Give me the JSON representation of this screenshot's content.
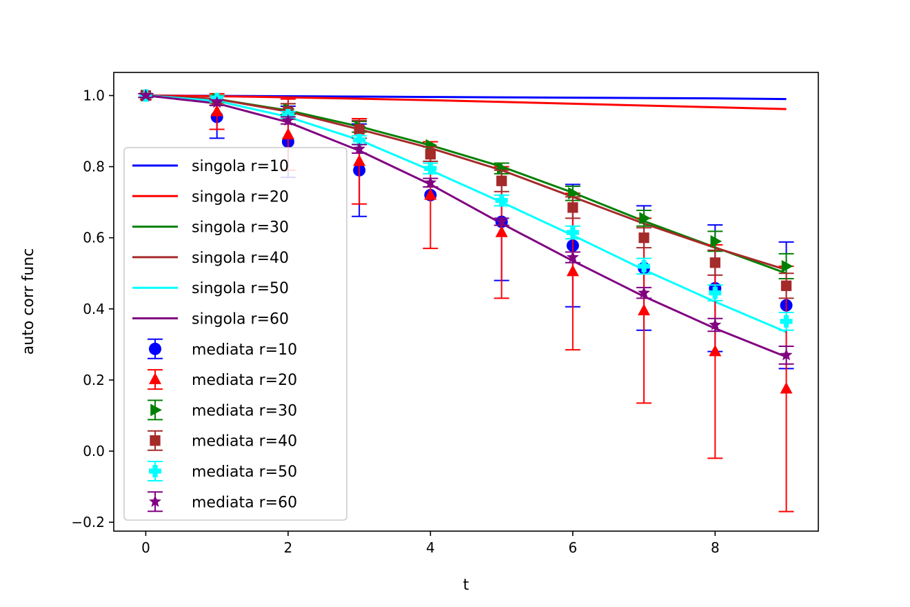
{
  "chart_data": {
    "type": "line",
    "title": "",
    "xlabel": "t",
    "ylabel": "auto corr func",
    "xlim": [
      -0.45,
      9.45
    ],
    "ylim": [
      -0.225,
      1.065
    ],
    "xticks": [
      0,
      2,
      4,
      6,
      8
    ],
    "xtick_labels": [
      "0",
      "2",
      "4",
      "6",
      "8"
    ],
    "yticks": [
      -0.2,
      0.0,
      0.2,
      0.4,
      0.6,
      0.8,
      1.0
    ],
    "ytick_labels": [
      "−0.2",
      "0.0",
      "0.2",
      "0.4",
      "0.6",
      "0.8",
      "1.0"
    ],
    "grid": false,
    "legend_position": "center-left",
    "x": [
      0,
      1,
      2,
      3,
      4,
      5,
      6,
      7,
      8,
      9
    ],
    "line_series": [
      {
        "name": "singola r=10",
        "color": "#0000ff",
        "values": [
          1.0,
          0.999,
          0.998,
          0.997,
          0.996,
          0.995,
          0.994,
          0.993,
          0.992,
          0.99
        ]
      },
      {
        "name": "singola r=20",
        "color": "#ff0000",
        "values": [
          1.0,
          0.998,
          0.995,
          0.991,
          0.987,
          0.982,
          0.977,
          0.972,
          0.967,
          0.962
        ]
      },
      {
        "name": "singola r=30",
        "color": "#008000",
        "values": [
          1.0,
          0.99,
          0.958,
          0.913,
          0.86,
          0.8,
          0.727,
          0.647,
          0.573,
          0.5
        ]
      },
      {
        "name": "singola r=40",
        "color": "#a52a2a",
        "values": [
          1.0,
          0.99,
          0.955,
          0.905,
          0.852,
          0.79,
          0.715,
          0.64,
          0.572,
          0.51
        ]
      },
      {
        "name": "singola r=50",
        "color": "#00ffff",
        "values": [
          1.0,
          0.985,
          0.94,
          0.875,
          0.79,
          0.7,
          0.607,
          0.51,
          0.42,
          0.335
        ]
      },
      {
        "name": "singola r=60",
        "color": "#800080",
        "values": [
          1.0,
          0.978,
          0.925,
          0.845,
          0.75,
          0.64,
          0.535,
          0.435,
          0.345,
          0.265
        ]
      }
    ],
    "errorbar_series": [
      {
        "name": "mediata r=10",
        "color": "#0000ff",
        "marker": "circle",
        "values": [
          1.0,
          0.94,
          0.87,
          0.79,
          0.72,
          0.645,
          0.578,
          0.515,
          0.458,
          0.41
        ],
        "errors": [
          0.005,
          0.06,
          0.1,
          0.13,
          0.0,
          0.165,
          0.172,
          0.175,
          0.178,
          0.178
        ]
      },
      {
        "name": "mediata r=20",
        "color": "#ff0000",
        "marker": "triangle",
        "values": [
          1.0,
          0.955,
          0.89,
          0.815,
          0.72,
          0.615,
          0.505,
          0.395,
          0.28,
          0.175
        ],
        "errors": [
          0.005,
          0.05,
          0.1,
          0.12,
          0.15,
          0.185,
          0.22,
          0.26,
          0.3,
          0.345
        ]
      },
      {
        "name": "mediata r=30",
        "color": "#008000",
        "marker": "triangle-right",
        "values": [
          1.0,
          0.99,
          0.962,
          0.912,
          0.86,
          0.795,
          0.725,
          0.655,
          0.59,
          0.52
        ],
        "errors": [
          0.005,
          0.01,
          0.015,
          0.015,
          0.0,
          0.015,
          0.02,
          0.022,
          0.028,
          0.035
        ]
      },
      {
        "name": "mediata r=40",
        "color": "#a52a2a",
        "marker": "square",
        "values": [
          1.0,
          0.985,
          0.955,
          0.905,
          0.835,
          0.76,
          0.685,
          0.6,
          0.53,
          0.465
        ],
        "errors": [
          0.005,
          0.012,
          0.022,
          0.025,
          0.02,
          0.03,
          0.03,
          0.028,
          0.035,
          0.035
        ]
      },
      {
        "name": "mediata r=50",
        "color": "#00ffff",
        "marker": "plus",
        "values": [
          1.0,
          0.99,
          0.945,
          0.875,
          0.795,
          0.705,
          0.615,
          0.52,
          0.445,
          0.365
        ],
        "errors": [
          0.005,
          0.008,
          0.01,
          0.012,
          0.015,
          0.015,
          0.018,
          0.022,
          0.022,
          0.025
        ]
      },
      {
        "name": "mediata r=60",
        "color": "#800080",
        "marker": "star",
        "values": [
          1.0,
          0.98,
          0.93,
          0.85,
          0.755,
          0.645,
          0.545,
          0.445,
          0.355,
          0.27
        ],
        "errors": [
          0.005,
          0.008,
          0.01,
          0.012,
          0.012,
          0.01,
          0.015,
          0.015,
          0.018,
          0.025
        ]
      }
    ]
  }
}
